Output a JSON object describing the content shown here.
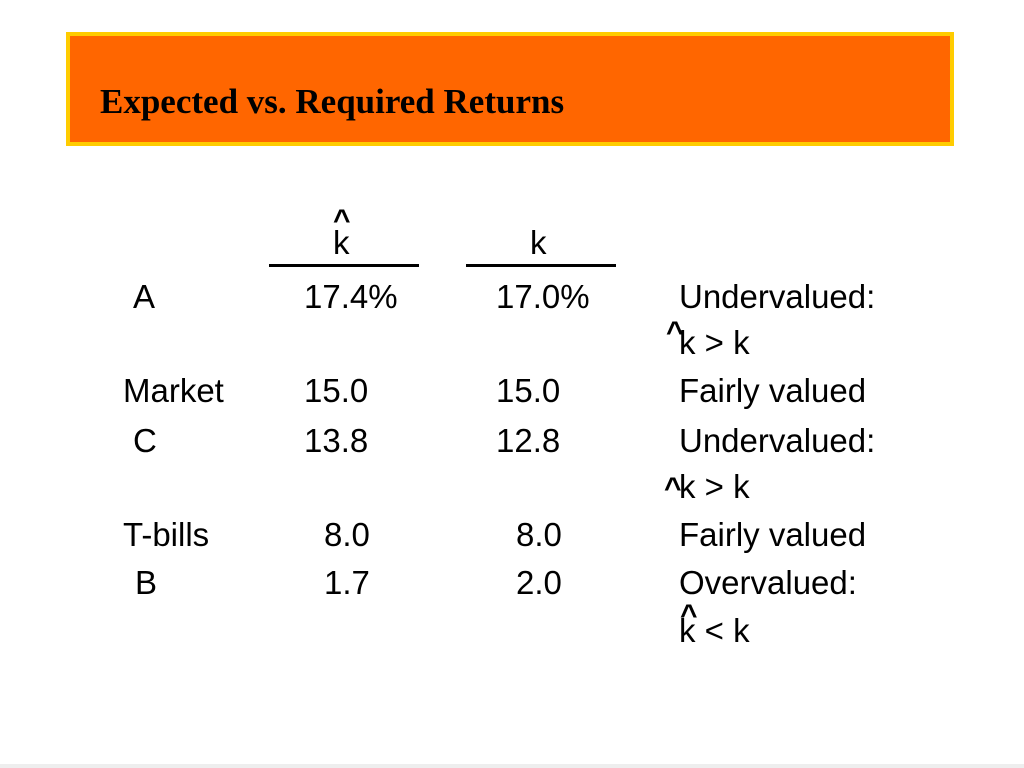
{
  "title": "Expected vs. Required Returns",
  "header": {
    "hat_symbol": "^",
    "expected_col": "k",
    "required_col": "k"
  },
  "rows": [
    {
      "name": "A",
      "expected": "17.4%",
      "required": "17.0%",
      "verdict": "Undervalued:",
      "relation": "k > k"
    },
    {
      "name": "Market",
      "expected": "15.0",
      "required": "15.0",
      "verdict": "Fairly valued"
    },
    {
      "name": "C",
      "expected": "13.8",
      "required": "12.8",
      "verdict": "Undervalued:",
      "relation": "k > k"
    },
    {
      "name": "T-bills",
      "expected": "8.0",
      "required": "8.0",
      "verdict": "Fairly valued"
    },
    {
      "name": "B",
      "expected": "1.7",
      "required": "2.0",
      "verdict": "Overvalued:",
      "relation": "k < k"
    }
  ],
  "colors": {
    "banner_fill": "#ff6600",
    "banner_border": "#ffcc00"
  }
}
